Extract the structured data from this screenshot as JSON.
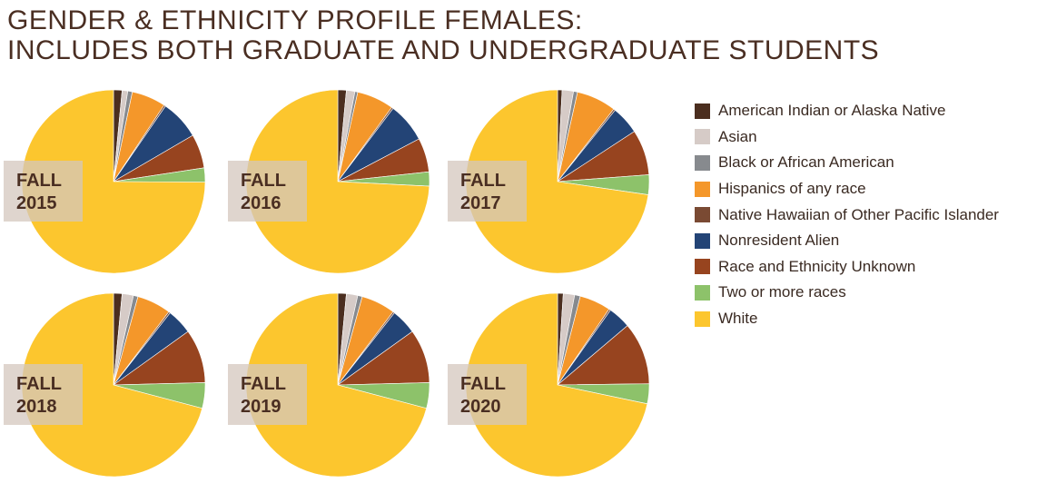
{
  "title": {
    "line1": "GENDER & ETHNICITY PROFILE FEMALES:",
    "line2": "INCLUDES BOTH GRADUATE AND UNDERGRADUATE STUDENTS"
  },
  "colors": {
    "American Indian or Alaska Native": "#4b2e1f",
    "Asian": "#d6cbc7",
    "Black or African American": "#878a8e",
    "Hispanics of any race": "#f4972a",
    "Native Hawaiian of Other Pacific Islander": "#7a4a33",
    "Nonresident Alien": "#234476",
    "Race and Ethnicity Unknown": "#97441f",
    "Two or more races": "#8dc26a",
    "White": "#fcc62e"
  },
  "chart_data": {
    "type": "pie",
    "categories": [
      "American Indian or Alaska Native",
      "Asian",
      "Black or African American",
      "Hispanics of any race",
      "Native Hawaiian of Other Pacific Islander",
      "Nonresident Alien",
      "Race and Ethnicity Unknown",
      "Two or more races",
      "White"
    ],
    "charts": [
      {
        "label_line1": "FALL",
        "label_line2": "2015",
        "values": [
          1.5,
          1.0,
          0.8,
          6.0,
          0.3,
          7.0,
          6.0,
          2.5,
          74.9
        ]
      },
      {
        "label_line1": "FALL",
        "label_line2": "2016",
        "values": [
          1.5,
          1.5,
          0.5,
          6.5,
          0.3,
          7.0,
          6.0,
          2.5,
          74.2
        ]
      },
      {
        "label_line1": "FALL",
        "label_line2": "2017",
        "values": [
          0.8,
          2.0,
          0.7,
          7.0,
          0.3,
          5.0,
          8.0,
          3.5,
          72.7
        ]
      },
      {
        "label_line1": "FALL",
        "label_line2": "2018",
        "values": [
          1.5,
          2.0,
          0.8,
          6.0,
          0.3,
          4.5,
          9.5,
          4.5,
          70.9
        ]
      },
      {
        "label_line1": "FALL",
        "label_line2": "2019",
        "values": [
          1.5,
          2.0,
          0.8,
          6.0,
          0.3,
          4.5,
          9.5,
          4.5,
          70.9
        ]
      },
      {
        "label_line1": "FALL",
        "label_line2": "2020",
        "values": [
          1.0,
          2.0,
          1.0,
          5.5,
          0.3,
          4.0,
          11.0,
          3.5,
          71.7
        ]
      }
    ]
  }
}
